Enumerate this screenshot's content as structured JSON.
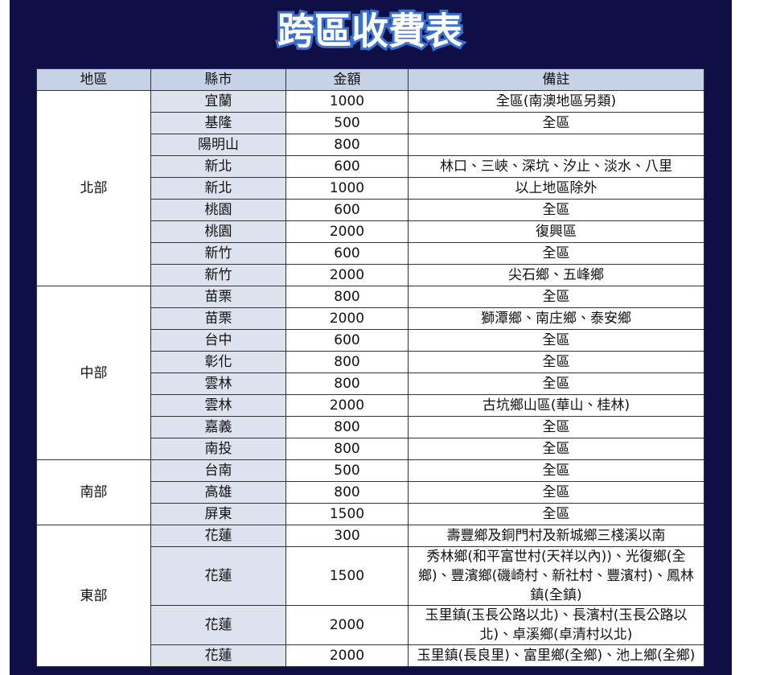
{
  "title": "跨區收費表",
  "table": {
    "header": [
      "地區",
      "縣市",
      "金額",
      "備註"
    ],
    "groups": [
      {
        "region": "北部",
        "rows": [
          [
            "宜蘭",
            1000,
            "全區(南澳地區另類)"
          ],
          [
            "基隆",
            500,
            "全區"
          ],
          [
            "陽明山",
            800
          ],
          [
            "新北",
            600,
            "林口、三峽、深坑、汐止、淡水、八里"
          ],
          [
            "新北",
            1000,
            "以上地區除外"
          ],
          [
            "桃園",
            600,
            "全區"
          ],
          [
            "桃園",
            2000,
            "復興區"
          ],
          [
            "新竹",
            600,
            "全區"
          ],
          [
            "新竹",
            2000,
            "尖石鄉、五峰鄉"
          ]
        ]
      },
      {
        "region": "中部",
        "rows": [
          [
            "苗栗",
            800,
            "全區"
          ],
          [
            "苗栗",
            2000,
            "獅潭鄉、南庄鄉、泰安鄉"
          ],
          [
            "台中",
            600,
            "全區"
          ],
          [
            "彰化",
            800,
            "全區"
          ],
          [
            "雲林",
            800,
            "全區"
          ],
          [
            "雲林",
            2000,
            "古坑鄉山區(華山、桂林)"
          ],
          [
            "嘉義",
            800,
            "全區"
          ],
          [
            "南投",
            800,
            "全區"
          ]
        ]
      },
      {
        "region": "南部",
        "rows": [
          [
            "台南",
            500,
            "全區"
          ],
          [
            "高雄",
            800,
            "全區"
          ],
          [
            "屏東",
            1500,
            "全區"
          ]
        ]
      },
      {
        "region": "東部",
        "rows": [
          [
            "花蓮",
            300,
            "壽豐鄉及銅門村及新城鄉三棧溪以南"
          ],
          [
            "花蓮",
            1500,
            "秀林鄉(和平富世村(天祥以內))、光復鄉(全鄉)、豐濱鄉(磯崎村、新社村、豐濱村)、鳳林鎮(全鎮)"
          ],
          [
            "花蓮",
            2000,
            "玉里鎮(玉長公路以北)、長濱村(玉長公路以北)、卓溪鄉(卓清村以北)"
          ],
          [
            "花蓮",
            2000,
            "玉里鎮(長良里)、富里鄉(全鄉)、池上鄉(全鄉)"
          ]
        ]
      }
    ]
  }
}
